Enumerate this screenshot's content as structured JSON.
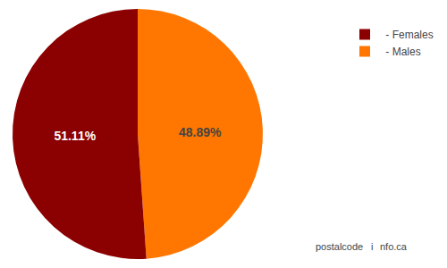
{
  "chart_data": {
    "type": "pie",
    "categories": [
      " - Males",
      " - Females"
    ],
    "values": [
      48.89,
      51.11
    ],
    "value_labels": [
      "48.89%",
      "51.11%"
    ],
    "colors": [
      "#FF7700",
      "#8B0000"
    ],
    "data_labels": true,
    "legend": "upper right",
    "annotations": [
      "postalcode",
      "i",
      "nfo.ca"
    ]
  }
}
